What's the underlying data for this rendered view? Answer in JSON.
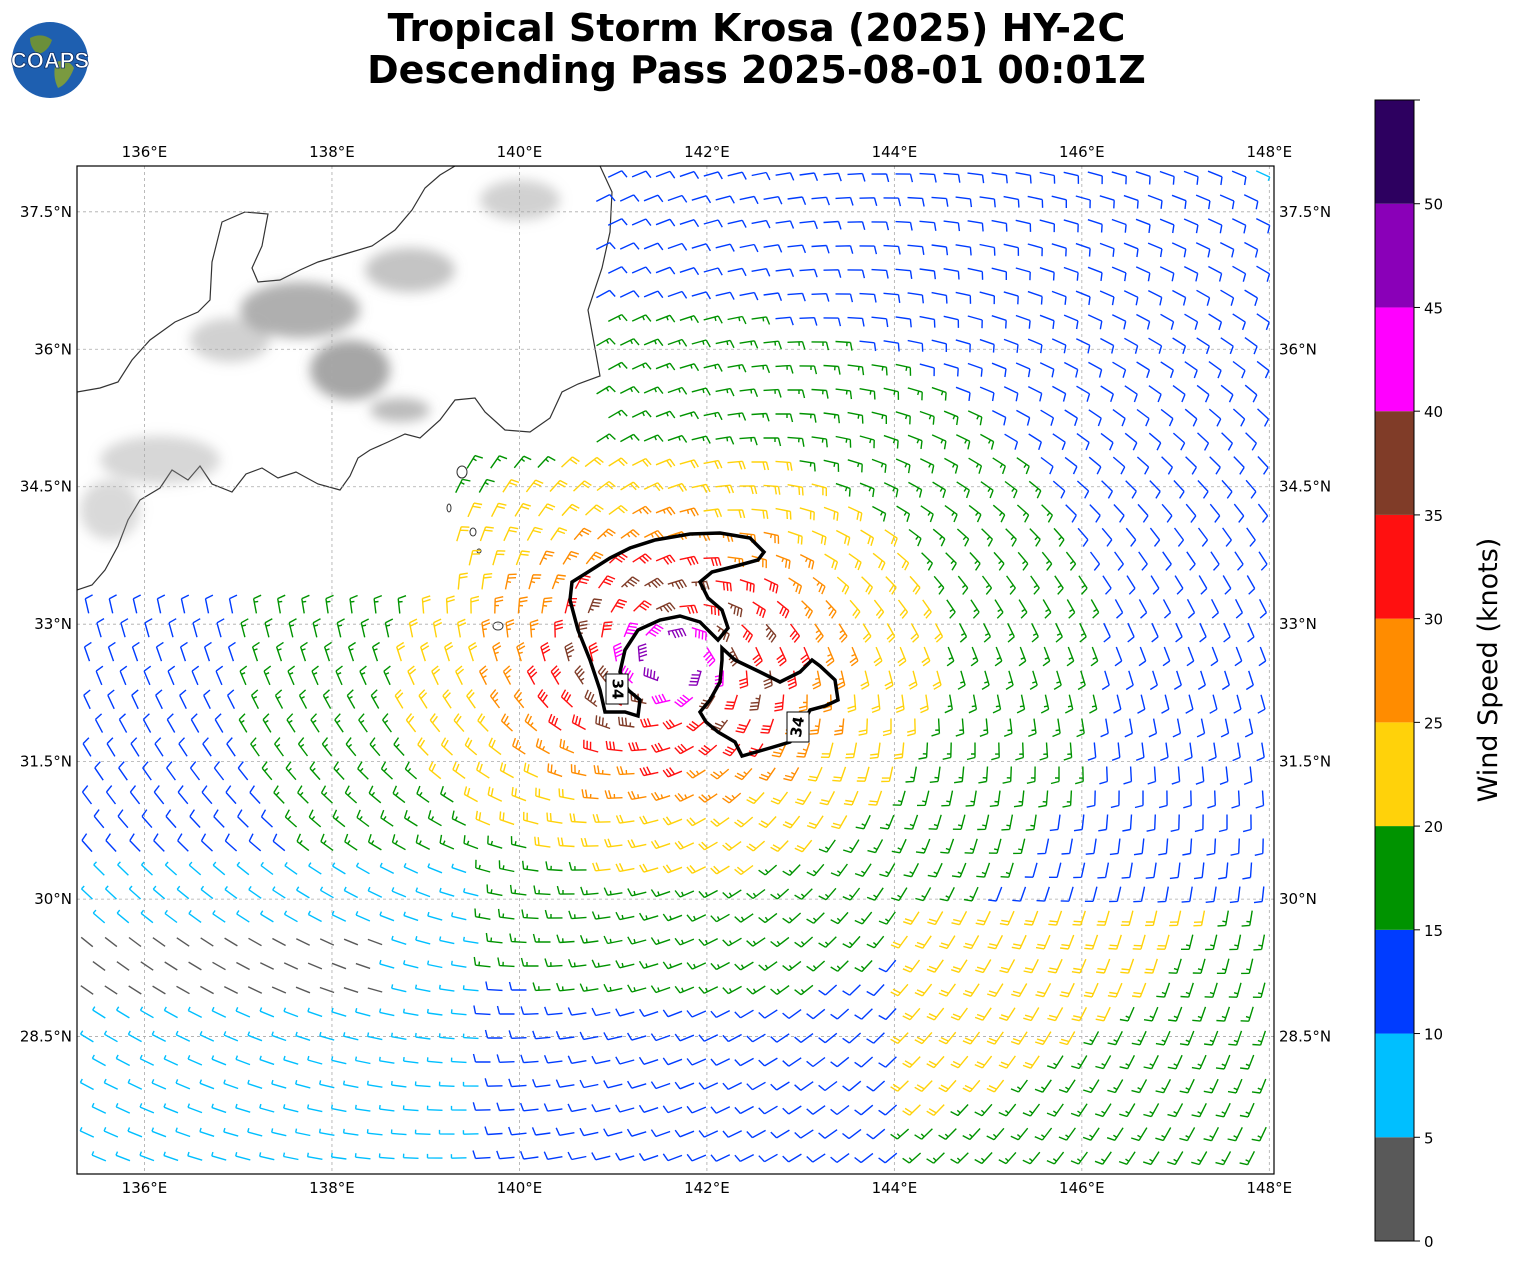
{
  "title": {
    "line1": "Tropical Storm Krosa (2025) HY-2C",
    "line2": "Descending Pass 2025-08-01 00:01Z"
  },
  "logo": {
    "text": "COAPS",
    "icon": "globe-icon"
  },
  "map": {
    "lon_labels": [
      "136°E",
      "138°E",
      "140°E",
      "142°E",
      "144°E",
      "146°E",
      "148°E"
    ],
    "lon_values": [
      136,
      138,
      140,
      142,
      144,
      146,
      148
    ],
    "lat_labels": [
      "37.5°N",
      "36°N",
      "34.5°N",
      "33°N",
      "31.5°N",
      "30°N",
      "28.5°N"
    ],
    "lat_values": [
      37.5,
      36,
      34.5,
      33,
      31.5,
      30,
      28.5
    ],
    "extent": {
      "lon_min": 135.28,
      "lon_max": 148.05,
      "lat_min": 27.0,
      "lat_max": 38.0
    },
    "center": {
      "lon": 141.6,
      "lat": 32.6
    },
    "contour_label": "34",
    "gridlines": true
  },
  "colorbar": {
    "label": "Wind Speed (knots)",
    "ticks": [
      "0",
      "5",
      "10",
      "15",
      "20",
      "25",
      "30",
      "35",
      "40",
      "45",
      "50"
    ],
    "bins": [
      {
        "min": 0,
        "max": 5,
        "color": "#595959"
      },
      {
        "min": 5,
        "max": 10,
        "color": "#00bfff"
      },
      {
        "min": 10,
        "max": 15,
        "color": "#003cff"
      },
      {
        "min": 15,
        "max": 20,
        "color": "#009300"
      },
      {
        "min": 20,
        "max": 25,
        "color": "#ffd20a"
      },
      {
        "min": 25,
        "max": 30,
        "color": "#ff8c00"
      },
      {
        "min": 30,
        "max": 35,
        "color": "#ff1010"
      },
      {
        "min": 35,
        "max": 40,
        "color": "#803c28"
      },
      {
        "min": 40,
        "max": 45,
        "color": "#ff00ff"
      },
      {
        "min": 45,
        "max": 50,
        "color": "#8a00b8"
      },
      {
        "min": 50,
        "max": 55,
        "color": "#2d0060"
      }
    ]
  }
}
